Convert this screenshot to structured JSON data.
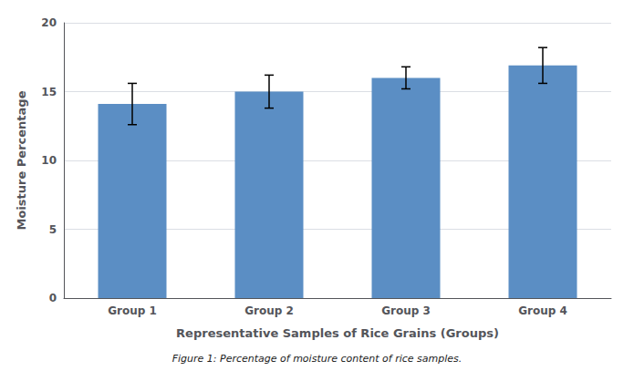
{
  "chart_data": {
    "type": "bar",
    "categories": [
      "Group 1",
      "Group 2",
      "Group 3",
      "Group 4"
    ],
    "values": [
      14.1,
      15.0,
      16.0,
      16.9
    ],
    "errors": [
      1.5,
      1.2,
      0.8,
      1.3
    ],
    "color": "#5b8ec4",
    "xlabel": "Representative Samples of Rice Grains (Groups)",
    "ylabel": "Moisture Percentage",
    "caption": "Figure 1: Percentage of moisture content of rice samples.",
    "ylim": [
      0,
      20
    ],
    "yticks": [
      0,
      5,
      10,
      15,
      20
    ],
    "grid": true
  }
}
